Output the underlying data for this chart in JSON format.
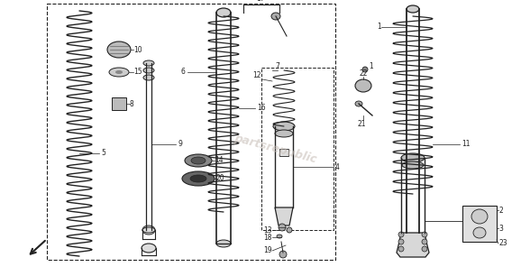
{
  "bg_color": "#ffffff",
  "line_color": "#222222",
  "figsize": [
    5.78,
    2.96
  ],
  "dpi": 100,
  "watermark_color": "#c8bfb8"
}
